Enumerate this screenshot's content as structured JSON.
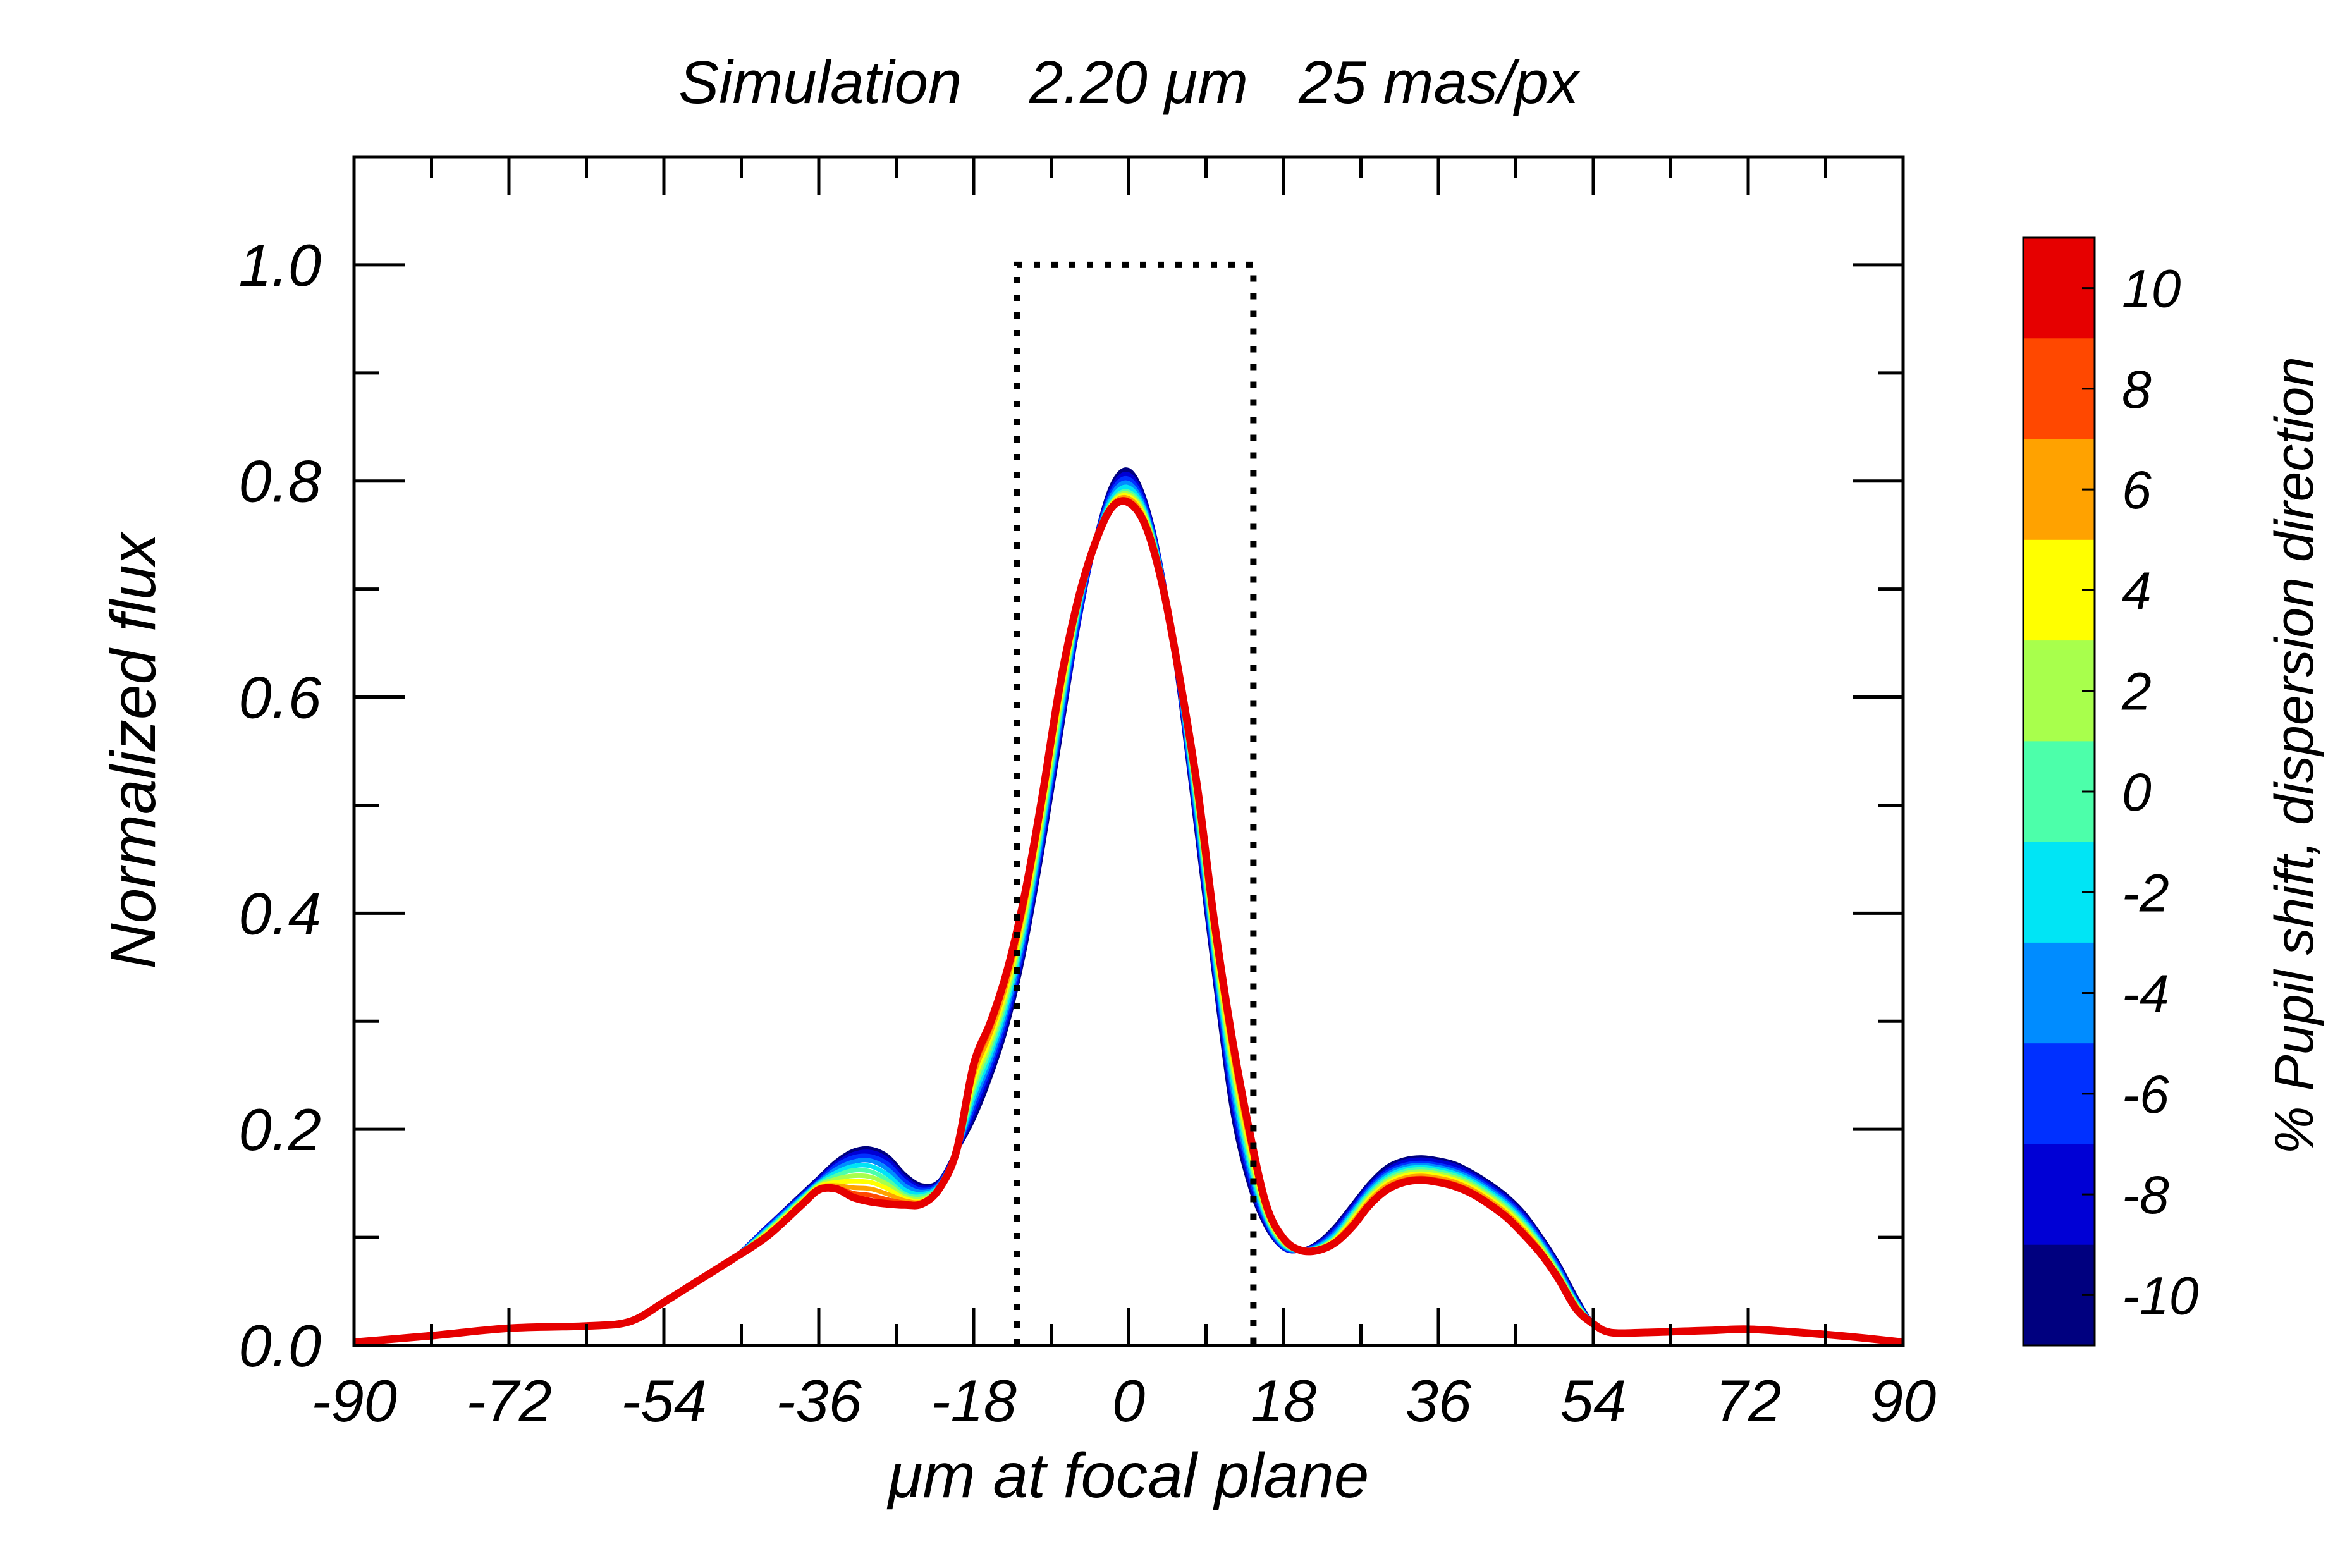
{
  "chart_data": {
    "type": "line",
    "title": "Simulation    2.20 μm   25 mas/px",
    "xlabel": "μm at focal plane",
    "ylabel": "Normalized flux",
    "xlim": [
      -90,
      90
    ],
    "ylim": [
      0.0,
      1.1
    ],
    "xticks": [
      -90,
      -72,
      -54,
      -36,
      -18,
      0,
      18,
      36,
      54,
      72,
      90
    ],
    "xtick_labels": [
      "-90",
      "-72",
      "-54",
      "-36",
      "-18",
      "0",
      "18",
      "36",
      "54",
      "72",
      "90"
    ],
    "yticks": [
      0.0,
      0.2,
      0.4,
      0.6,
      0.8,
      1.0
    ],
    "ytick_labels": [
      "0.0",
      "0.2",
      "0.4",
      "0.6",
      "0.8",
      "1.0"
    ],
    "xminor_step": 9,
    "yminor_step": 0.1,
    "slit_box": {
      "x": [
        -13,
        -13,
        14.5,
        14.5
      ],
      "y": [
        0.0,
        1.0,
        1.0,
        0.0
      ],
      "style": "dotted"
    },
    "curve_x": [
      -90,
      -81,
      -72,
      -63,
      -58,
      -54,
      -50,
      -46,
      -42,
      -38,
      -36,
      -34,
      -32,
      -30,
      -28,
      -26,
      -24,
      -22,
      -20,
      -18,
      -16,
      -14,
      -12,
      -10,
      -8,
      -6,
      -4,
      -2,
      0,
      2,
      4,
      6,
      8,
      10,
      12,
      14,
      16,
      18,
      20,
      22,
      24,
      26,
      28,
      30,
      32,
      34,
      36,
      38,
      40,
      42,
      44,
      46,
      48,
      50,
      52,
      54,
      56,
      60,
      64,
      68,
      72,
      78,
      84,
      90
    ],
    "series": [
      {
        "name": "-10",
        "color": "#00007f",
        "values": [
          0.003,
          0.009,
          0.016,
          0.018,
          0.022,
          0.04,
          0.06,
          0.08,
          0.11,
          0.14,
          0.155,
          0.17,
          0.18,
          0.182,
          0.175,
          0.158,
          0.148,
          0.152,
          0.18,
          0.21,
          0.25,
          0.3,
          0.37,
          0.46,
          0.56,
          0.66,
          0.74,
          0.795,
          0.81,
          0.78,
          0.71,
          0.6,
          0.47,
          0.34,
          0.22,
          0.15,
          0.11,
          0.09,
          0.088,
          0.095,
          0.11,
          0.13,
          0.15,
          0.165,
          0.172,
          0.174,
          0.172,
          0.168,
          0.16,
          0.15,
          0.138,
          0.122,
          0.1,
          0.075,
          0.045,
          0.02,
          0.012,
          0.012,
          0.013,
          0.014,
          0.015,
          0.012,
          0.008,
          0.003
        ]
      },
      {
        "name": "-8",
        "color": "#0000d5",
        "values": [
          0.003,
          0.009,
          0.016,
          0.018,
          0.022,
          0.04,
          0.06,
          0.08,
          0.11,
          0.139,
          0.154,
          0.168,
          0.177,
          0.179,
          0.172,
          0.155,
          0.146,
          0.151,
          0.18,
          0.215,
          0.255,
          0.305,
          0.375,
          0.465,
          0.565,
          0.66,
          0.74,
          0.792,
          0.806,
          0.778,
          0.71,
          0.602,
          0.475,
          0.345,
          0.228,
          0.155,
          0.112,
          0.09,
          0.088,
          0.094,
          0.108,
          0.128,
          0.148,
          0.162,
          0.17,
          0.172,
          0.17,
          0.166,
          0.158,
          0.148,
          0.136,
          0.12,
          0.098,
          0.073,
          0.043,
          0.02,
          0.012,
          0.012,
          0.013,
          0.014,
          0.015,
          0.012,
          0.008,
          0.003
        ]
      },
      {
        "name": "-6",
        "color": "#0030ff",
        "values": [
          0.003,
          0.009,
          0.016,
          0.018,
          0.022,
          0.04,
          0.06,
          0.08,
          0.109,
          0.138,
          0.152,
          0.166,
          0.174,
          0.175,
          0.168,
          0.152,
          0.144,
          0.15,
          0.18,
          0.22,
          0.26,
          0.31,
          0.38,
          0.47,
          0.57,
          0.665,
          0.74,
          0.789,
          0.802,
          0.775,
          0.709,
          0.604,
          0.48,
          0.35,
          0.235,
          0.16,
          0.114,
          0.091,
          0.088,
          0.093,
          0.106,
          0.126,
          0.146,
          0.16,
          0.167,
          0.169,
          0.167,
          0.163,
          0.156,
          0.146,
          0.134,
          0.118,
          0.097,
          0.072,
          0.042,
          0.02,
          0.012,
          0.012,
          0.013,
          0.014,
          0.015,
          0.012,
          0.008,
          0.003
        ]
      },
      {
        "name": "-4",
        "color": "#008cff",
        "values": [
          0.003,
          0.009,
          0.016,
          0.018,
          0.022,
          0.04,
          0.06,
          0.08,
          0.108,
          0.137,
          0.151,
          0.163,
          0.17,
          0.171,
          0.163,
          0.148,
          0.142,
          0.149,
          0.18,
          0.225,
          0.265,
          0.315,
          0.385,
          0.475,
          0.575,
          0.67,
          0.74,
          0.786,
          0.798,
          0.772,
          0.708,
          0.606,
          0.485,
          0.355,
          0.242,
          0.165,
          0.116,
          0.092,
          0.088,
          0.092,
          0.104,
          0.124,
          0.144,
          0.158,
          0.165,
          0.167,
          0.165,
          0.161,
          0.154,
          0.144,
          0.132,
          0.116,
          0.095,
          0.07,
          0.041,
          0.02,
          0.012,
          0.012,
          0.013,
          0.014,
          0.015,
          0.012,
          0.008,
          0.003
        ]
      },
      {
        "name": "-2",
        "color": "#00e5f5",
        "values": [
          0.003,
          0.009,
          0.016,
          0.018,
          0.022,
          0.04,
          0.06,
          0.08,
          0.107,
          0.136,
          0.15,
          0.16,
          0.166,
          0.166,
          0.158,
          0.144,
          0.14,
          0.148,
          0.18,
          0.23,
          0.27,
          0.32,
          0.39,
          0.48,
          0.58,
          0.673,
          0.74,
          0.783,
          0.794,
          0.77,
          0.707,
          0.608,
          0.49,
          0.36,
          0.249,
          0.17,
          0.118,
          0.093,
          0.088,
          0.091,
          0.102,
          0.122,
          0.142,
          0.156,
          0.163,
          0.165,
          0.163,
          0.159,
          0.152,
          0.142,
          0.13,
          0.114,
          0.093,
          0.068,
          0.04,
          0.02,
          0.012,
          0.012,
          0.013,
          0.014,
          0.015,
          0.012,
          0.008,
          0.003
        ]
      },
      {
        "name": "0",
        "color": "#4cffaa",
        "values": [
          0.003,
          0.009,
          0.016,
          0.018,
          0.022,
          0.04,
          0.06,
          0.08,
          0.106,
          0.135,
          0.149,
          0.157,
          0.162,
          0.161,
          0.153,
          0.14,
          0.138,
          0.147,
          0.18,
          0.235,
          0.275,
          0.325,
          0.395,
          0.485,
          0.585,
          0.676,
          0.74,
          0.78,
          0.79,
          0.768,
          0.706,
          0.61,
          0.495,
          0.365,
          0.256,
          0.175,
          0.12,
          0.094,
          0.088,
          0.09,
          0.1,
          0.12,
          0.14,
          0.154,
          0.161,
          0.163,
          0.161,
          0.157,
          0.15,
          0.14,
          0.128,
          0.112,
          0.092,
          0.067,
          0.039,
          0.02,
          0.012,
          0.012,
          0.013,
          0.014,
          0.015,
          0.012,
          0.008,
          0.003
        ]
      },
      {
        "name": "2",
        "color": "#a8ff4c",
        "values": [
          0.003,
          0.009,
          0.016,
          0.018,
          0.022,
          0.04,
          0.06,
          0.08,
          0.105,
          0.134,
          0.148,
          0.154,
          0.157,
          0.156,
          0.149,
          0.138,
          0.136,
          0.146,
          0.18,
          0.24,
          0.28,
          0.33,
          0.4,
          0.49,
          0.59,
          0.678,
          0.74,
          0.779,
          0.788,
          0.766,
          0.705,
          0.611,
          0.5,
          0.37,
          0.262,
          0.18,
          0.122,
          0.095,
          0.088,
          0.09,
          0.099,
          0.118,
          0.138,
          0.152,
          0.159,
          0.161,
          0.159,
          0.155,
          0.148,
          0.138,
          0.126,
          0.11,
          0.09,
          0.066,
          0.038,
          0.02,
          0.012,
          0.012,
          0.013,
          0.014,
          0.015,
          0.012,
          0.008,
          0.003
        ]
      },
      {
        "name": "4",
        "color": "#ffff00",
        "values": [
          0.003,
          0.009,
          0.016,
          0.018,
          0.022,
          0.04,
          0.06,
          0.08,
          0.104,
          0.133,
          0.147,
          0.151,
          0.152,
          0.151,
          0.145,
          0.136,
          0.134,
          0.145,
          0.18,
          0.245,
          0.285,
          0.335,
          0.405,
          0.495,
          0.595,
          0.68,
          0.74,
          0.778,
          0.786,
          0.764,
          0.704,
          0.612,
          0.504,
          0.375,
          0.268,
          0.185,
          0.124,
          0.096,
          0.088,
          0.089,
          0.098,
          0.116,
          0.136,
          0.15,
          0.157,
          0.159,
          0.157,
          0.153,
          0.146,
          0.136,
          0.124,
          0.108,
          0.088,
          0.064,
          0.037,
          0.02,
          0.012,
          0.012,
          0.013,
          0.014,
          0.015,
          0.012,
          0.008,
          0.003
        ]
      },
      {
        "name": "6",
        "color": "#ffa200",
        "values": [
          0.003,
          0.009,
          0.016,
          0.018,
          0.022,
          0.04,
          0.06,
          0.08,
          0.103,
          0.132,
          0.146,
          0.148,
          0.146,
          0.145,
          0.14,
          0.134,
          0.133,
          0.145,
          0.18,
          0.25,
          0.29,
          0.34,
          0.41,
          0.5,
          0.6,
          0.682,
          0.74,
          0.777,
          0.784,
          0.762,
          0.703,
          0.613,
          0.508,
          0.38,
          0.274,
          0.19,
          0.126,
          0.097,
          0.088,
          0.089,
          0.097,
          0.114,
          0.134,
          0.148,
          0.155,
          0.157,
          0.155,
          0.151,
          0.144,
          0.134,
          0.122,
          0.106,
          0.087,
          0.063,
          0.036,
          0.02,
          0.012,
          0.012,
          0.013,
          0.014,
          0.015,
          0.012,
          0.008,
          0.003
        ]
      },
      {
        "name": "8",
        "color": "#ff4800",
        "values": [
          0.003,
          0.009,
          0.016,
          0.018,
          0.022,
          0.04,
          0.06,
          0.08,
          0.102,
          0.131,
          0.145,
          0.146,
          0.141,
          0.139,
          0.135,
          0.132,
          0.132,
          0.145,
          0.18,
          0.255,
          0.295,
          0.345,
          0.415,
          0.505,
          0.605,
          0.684,
          0.74,
          0.776,
          0.782,
          0.76,
          0.702,
          0.614,
          0.512,
          0.385,
          0.28,
          0.195,
          0.128,
          0.098,
          0.088,
          0.088,
          0.096,
          0.112,
          0.132,
          0.146,
          0.153,
          0.155,
          0.153,
          0.149,
          0.142,
          0.132,
          0.12,
          0.104,
          0.085,
          0.062,
          0.035,
          0.02,
          0.012,
          0.012,
          0.013,
          0.014,
          0.015,
          0.012,
          0.008,
          0.003
        ]
      },
      {
        "name": "10",
        "color": "#e60000",
        "values": [
          0.003,
          0.009,
          0.016,
          0.018,
          0.022,
          0.04,
          0.06,
          0.08,
          0.101,
          0.13,
          0.144,
          0.145,
          0.137,
          0.133,
          0.131,
          0.13,
          0.131,
          0.145,
          0.18,
          0.26,
          0.3,
          0.35,
          0.42,
          0.51,
          0.61,
          0.686,
          0.74,
          0.775,
          0.78,
          0.758,
          0.701,
          0.615,
          0.516,
          0.39,
          0.286,
          0.2,
          0.13,
          0.099,
          0.088,
          0.088,
          0.095,
          0.11,
          0.13,
          0.144,
          0.151,
          0.153,
          0.151,
          0.147,
          0.14,
          0.13,
          0.118,
          0.102,
          0.084,
          0.061,
          0.034,
          0.02,
          0.012,
          0.012,
          0.013,
          0.014,
          0.015,
          0.012,
          0.008,
          0.003
        ]
      }
    ],
    "colorbar": {
      "label": "% Pupil shift, dispersion direction",
      "ticks": [
        "10",
        "8",
        "6",
        "4",
        "2",
        "0",
        "-2",
        "-4",
        "-6",
        "-8",
        "-10"
      ],
      "colors": [
        "#e60000",
        "#ff4800",
        "#ffa200",
        "#ffff00",
        "#a8ff4c",
        "#4cffaa",
        "#00e5f5",
        "#008cff",
        "#0030ff",
        "#0000d5",
        "#00007f"
      ]
    }
  }
}
